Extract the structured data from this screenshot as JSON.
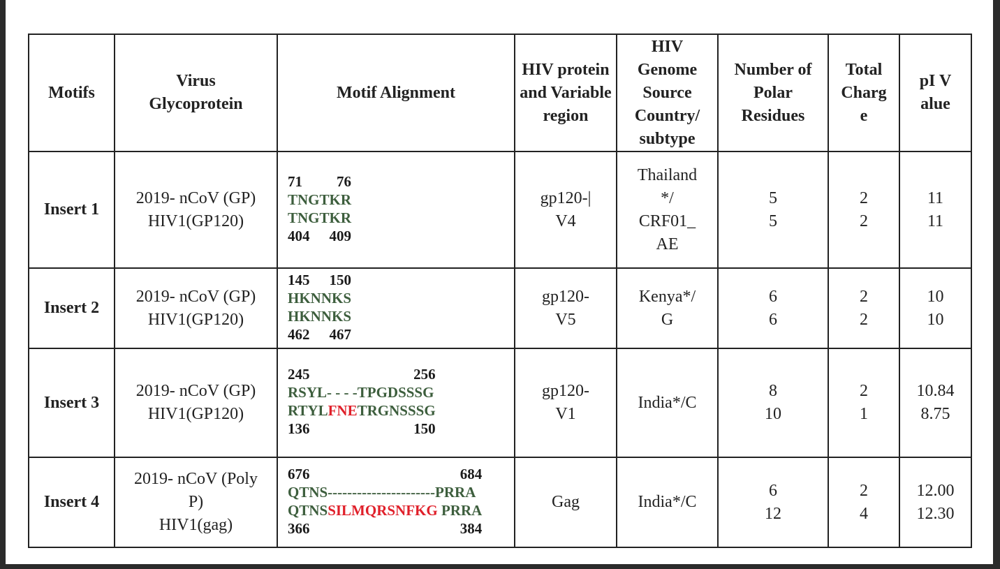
{
  "headers": [
    "Motifs",
    "Virus Glycoprotein",
    "Motif Alignment",
    "HIV protein and Variable region",
    "HIV Genome Source Country/ subtype",
    "Number of Polar Residues",
    "Total Charge",
    "pI Value"
  ],
  "rows": [
    {
      "motif": "Insert 1",
      "glyco": [
        "2019- nCoV (GP)",
        "HIV1(GP120)"
      ],
      "align": {
        "top": [
          "71",
          "76"
        ],
        "seq1": [
          {
            "t": "TNGTKR",
            "red": false
          }
        ],
        "seq2": [
          {
            "t": "TNGTKR",
            "red": false
          }
        ],
        "bottom": [
          "404",
          "409"
        ]
      },
      "region": [
        "gp120-|",
        "V4"
      ],
      "country": [
        "Thailand",
        "*/",
        "CRF01_",
        "AE"
      ],
      "polar": [
        "5",
        "5"
      ],
      "charge": [
        "2",
        "2"
      ],
      "pi": [
        "11",
        "11"
      ]
    },
    {
      "motif": "Insert 2",
      "glyco": [
        "2019- nCoV (GP)",
        "HIV1(GP120)"
      ],
      "align": {
        "top": [
          "145",
          "150"
        ],
        "seq1": [
          {
            "t": "HKNNKS",
            "red": false
          }
        ],
        "seq2": [
          {
            "t": "HKNNKS",
            "red": false
          }
        ],
        "bottom": [
          "462",
          "467"
        ]
      },
      "region": [
        "gp120-",
        "V5"
      ],
      "country": [
        "Kenya*/",
        "G"
      ],
      "polar": [
        "6",
        "6"
      ],
      "charge": [
        "2",
        "2"
      ],
      "pi": [
        "10",
        "10"
      ]
    },
    {
      "motif": "Insert 3",
      "glyco": [
        "2019- nCoV (GP)",
        "HIV1(GP120)"
      ],
      "align": {
        "top": [
          "245",
          "256"
        ],
        "seq1": [
          {
            "t": "RSYL- - - -TPGDSSSG",
            "red": false
          }
        ],
        "seq2": [
          {
            "t": "RTYL",
            "red": false
          },
          {
            "t": "FNE",
            "red": true
          },
          {
            "t": "TRGNSSSG",
            "red": false
          }
        ],
        "bottom": [
          "136",
          "150"
        ]
      },
      "region": [
        "gp120-",
        "V1"
      ],
      "country": [
        "India*/C"
      ],
      "polar": [
        "8",
        "10"
      ],
      "charge": [
        "2",
        "1"
      ],
      "pi": [
        "10.84",
        "8.75"
      ]
    },
    {
      "motif": "Insert 4",
      "glyco": [
        "2019- nCoV (Poly",
        "P)",
        "HIV1(gag)"
      ],
      "align": {
        "top": [
          "676",
          "684"
        ],
        "seq1": [
          {
            "t": "QTNS----------------------PRRA",
            "red": false
          }
        ],
        "seq2": [
          {
            "t": "QTNS",
            "red": false
          },
          {
            "t": "SILMQRSNFKG",
            "red": true
          },
          {
            "t": " PRRA",
            "red": false
          }
        ],
        "bottom": [
          "366",
          "384"
        ]
      },
      "region": [
        "Gag"
      ],
      "country": [
        "India*/C"
      ],
      "polar": [
        "6",
        "12"
      ],
      "charge": [
        "2",
        "4"
      ],
      "pi": [
        "12.00",
        "12.30"
      ]
    }
  ],
  "colors": {
    "sequence": "#3d5e3d",
    "insertion": "#e0202a"
  }
}
